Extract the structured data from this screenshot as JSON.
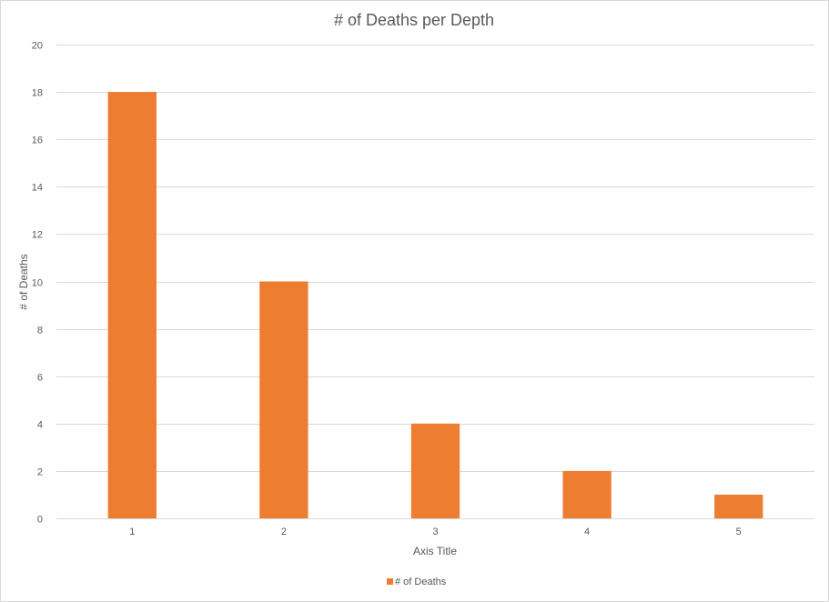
{
  "chart_data": {
    "type": "bar",
    "title": "# of Deaths per Depth",
    "xlabel": "Axis Title",
    "ylabel": "# of Deaths",
    "categories": [
      "1",
      "2",
      "3",
      "4",
      "5"
    ],
    "series": [
      {
        "name": "# of Deaths",
        "values": [
          18,
          10,
          4,
          2,
          1
        ],
        "color": "#ED7D31"
      }
    ],
    "ylim": [
      0,
      20
    ],
    "yticks": [
      0,
      2,
      4,
      6,
      8,
      10,
      12,
      14,
      16,
      18,
      20
    ],
    "grid": true,
    "legend_position": "bottom"
  }
}
